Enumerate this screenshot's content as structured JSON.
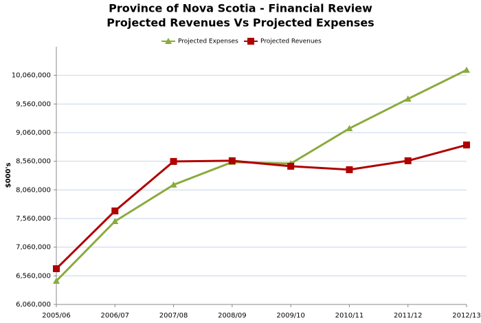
{
  "chart_data": {
    "type": "line",
    "title": "Province of Nova Scotia - Financial Review",
    "subtitle": "Projected Revenues Vs Projected Expenses",
    "y_label": "$000's",
    "categories": [
      "2005/06",
      "2006/07",
      "2007/08",
      "2008/09",
      "2009/10",
      "2010/11",
      "2011/12",
      "2012/13"
    ],
    "series": [
      {
        "name": "Projected Expenses",
        "color": "#8aaa3c",
        "marker": "triangle",
        "values": [
          6470000,
          7512000,
          8149000,
          8545000,
          8520000,
          9133000,
          9649000,
          10154000
        ]
      },
      {
        "name": "Projected Revenues",
        "color": "#b00000",
        "marker": "square",
        "values": [
          6684000,
          7693000,
          8557000,
          8569000,
          8473000,
          8413000,
          8569000,
          8845000
        ]
      }
    ],
    "ylim": [
      6060000,
      10560000
    ],
    "yticks": [
      {
        "value": 6060000,
        "label": "6,060,000"
      },
      {
        "value": 6560000,
        "label": "6,560,000"
      },
      {
        "value": 7060000,
        "label": "7,060,000"
      },
      {
        "value": 7560000,
        "label": "7,560,000"
      },
      {
        "value": 8060000,
        "label": "8,060,000"
      },
      {
        "value": 8560000,
        "label": "8,560,000"
      },
      {
        "value": 9060000,
        "label": "9,060,000"
      },
      {
        "value": 9560000,
        "label": "9,560,000"
      },
      {
        "value": 10060000,
        "label": "10,060,000"
      }
    ],
    "grid": true,
    "legend": "top"
  }
}
